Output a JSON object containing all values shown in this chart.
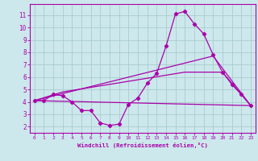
{
  "bg_color": "#cce8ec",
  "grid_color": "#aacccc",
  "line_color": "#aa00aa",
  "xlabel": "Windchill (Refroidissement éolien,°C)",
  "ylabel_ticks": [
    2,
    3,
    4,
    5,
    6,
    7,
    8,
    9,
    10,
    11
  ],
  "xticks": [
    0,
    1,
    2,
    3,
    4,
    5,
    6,
    7,
    8,
    9,
    10,
    11,
    12,
    13,
    14,
    15,
    16,
    17,
    18,
    19,
    20,
    21,
    22,
    23
  ],
  "xlim": [
    -0.5,
    23.5
  ],
  "ylim": [
    1.5,
    11.9
  ],
  "line1_x": [
    0,
    1,
    2,
    3,
    4,
    5,
    6,
    7,
    8,
    9,
    10,
    11,
    12,
    13,
    14,
    15,
    16,
    17,
    18,
    19,
    20,
    21,
    22,
    23
  ],
  "line1_y": [
    4.1,
    4.1,
    4.6,
    4.5,
    4.0,
    3.3,
    3.3,
    2.3,
    2.1,
    2.2,
    3.8,
    4.3,
    5.5,
    6.3,
    8.5,
    11.1,
    11.3,
    10.3,
    9.5,
    7.8,
    6.4,
    5.4,
    4.6,
    3.7
  ],
  "line2_x": [
    0,
    23
  ],
  "line2_y": [
    4.1,
    3.7
  ],
  "line3_x": [
    0,
    19,
    23
  ],
  "line3_y": [
    4.1,
    7.7,
    3.7
  ],
  "line4_x": [
    0,
    3,
    16,
    20,
    23
  ],
  "line4_y": [
    4.1,
    4.8,
    6.4,
    6.4,
    3.7
  ]
}
